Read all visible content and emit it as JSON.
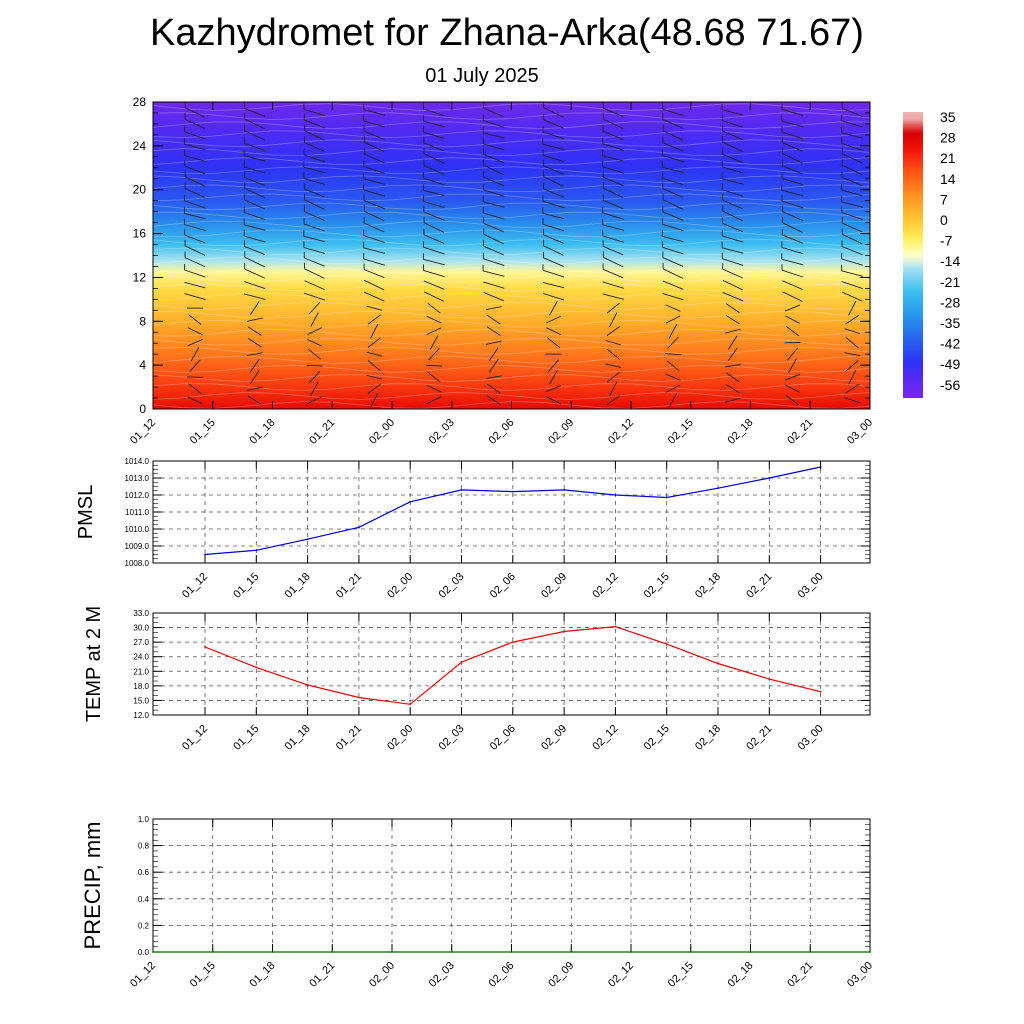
{
  "title": "Kazhydromet for Zhana-Arka(48.68 71.67)",
  "subtitle": "01 July 2025",
  "time_labels": [
    "01_12",
    "01_15",
    "01_18",
    "01_21",
    "02_00",
    "02_03",
    "02_06",
    "02_09",
    "02_12",
    "02_15",
    "02_18",
    "02_21",
    "03_00"
  ],
  "colors": {
    "pmsl_line": "#0000dd",
    "temp_line": "#ee0000",
    "precip_line": "#006400",
    "grid": "#555555"
  },
  "chart_data": [
    {
      "type": "heatmap",
      "name": "temperature-wind-profile",
      "x": [
        "01_12",
        "01_15",
        "01_18",
        "01_21",
        "02_00",
        "02_03",
        "02_06",
        "02_09",
        "02_12",
        "02_15",
        "02_18",
        "02_21",
        "03_00"
      ],
      "ylim": [
        0,
        28
      ],
      "yticks": [
        0,
        4,
        8,
        12,
        16,
        20,
        24,
        28
      ],
      "colorbar": {
        "labels": [
          "35",
          "28",
          "21",
          "14",
          "7",
          "0",
          "-7",
          "-14",
          "-21",
          "-28",
          "-35",
          "-42",
          "-49",
          "-56"
        ],
        "values": [
          35,
          28,
          21,
          14,
          7,
          0,
          -7,
          -14,
          -21,
          -28,
          -35,
          -42,
          -49,
          -56
        ]
      },
      "temperature_profile": [
        {
          "y": 0,
          "t": 27
        },
        {
          "y": 2,
          "t": 20
        },
        {
          "y": 5,
          "t": 12
        },
        {
          "y": 8,
          "t": 4
        },
        {
          "y": 11,
          "t": -3
        },
        {
          "y": 12.5,
          "t": -9
        },
        {
          "y": 13.5,
          "t": -16
        },
        {
          "y": 15,
          "t": -24
        },
        {
          "y": 17,
          "t": -34
        },
        {
          "y": 19,
          "t": -42
        },
        {
          "y": 22,
          "t": -48
        },
        {
          "y": 25,
          "t": -52
        },
        {
          "y": 28,
          "t": -58
        }
      ],
      "wind_barbs": "shown"
    },
    {
      "type": "line",
      "name": "pmsl",
      "ylabel": "PMSL",
      "ylim": [
        1008,
        1014
      ],
      "yticks": [
        "1008.0",
        "1009.0",
        "1010.0",
        "1011.0",
        "1012.0",
        "1013.0",
        "1014.0"
      ],
      "x": [
        "01_12",
        "01_15",
        "01_18",
        "01_21",
        "02_00",
        "02_03",
        "02_06",
        "02_09",
        "02_12",
        "02_15",
        "02_18",
        "02_21",
        "03_00"
      ],
      "values": [
        1008.5,
        1008.75,
        1009.4,
        1010.1,
        1011.6,
        1012.3,
        1012.2,
        1012.3,
        1012.0,
        1011.85,
        1012.4,
        1013.0,
        1013.65
      ],
      "grid": true
    },
    {
      "type": "line",
      "name": "temp-2m",
      "ylabel": "TEMP at 2 M",
      "ylim": [
        12,
        33
      ],
      "yticks": [
        "12.0",
        "15.0",
        "18.0",
        "21.0",
        "24.0",
        "27.0",
        "30.0",
        "33.0"
      ],
      "x": [
        "01_12",
        "01_15",
        "01_18",
        "01_21",
        "02_00",
        "02_03",
        "02_06",
        "02_09",
        "02_12",
        "02_15",
        "02_18",
        "02_21",
        "03_00"
      ],
      "values": [
        26.0,
        21.8,
        18.2,
        15.6,
        14.2,
        22.9,
        27.0,
        29.2,
        30.2,
        26.6,
        22.6,
        19.4,
        16.8
      ],
      "grid": true
    },
    {
      "type": "line",
      "name": "precip",
      "ylabel": "PRECIP, mm",
      "ylim": [
        0,
        1
      ],
      "yticks": [
        "0.0",
        "0.2",
        "0.4",
        "0.6",
        "0.8",
        "1.0"
      ],
      "x": [
        "01_12",
        "01_15",
        "01_18",
        "01_21",
        "02_00",
        "02_03",
        "02_06",
        "02_09",
        "02_12",
        "02_15",
        "02_18",
        "02_21",
        "03_00"
      ],
      "values": [
        0,
        0,
        0,
        0,
        0,
        0,
        0,
        0,
        0,
        0,
        0,
        0,
        0
      ],
      "grid": true
    }
  ]
}
